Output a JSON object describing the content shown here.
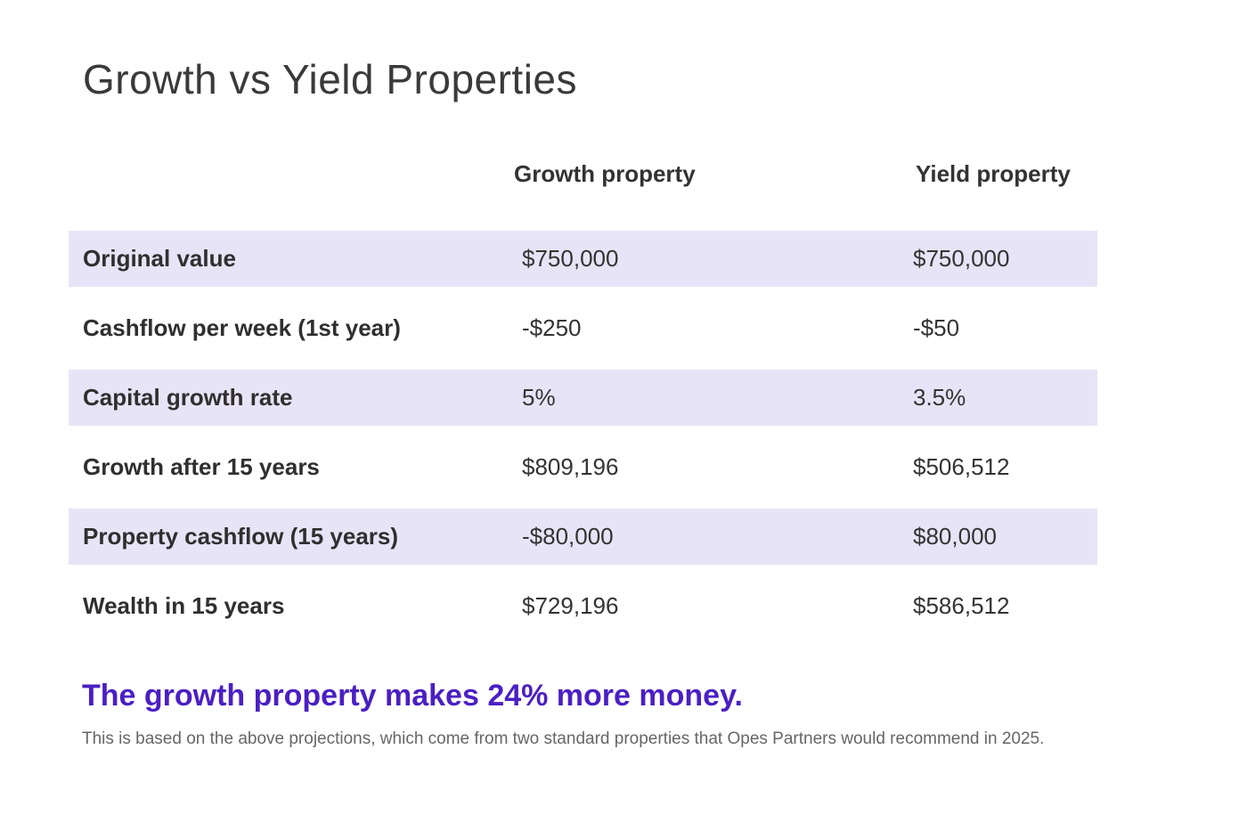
{
  "title": "Growth vs Yield Properties",
  "columns": [
    "Growth property",
    "Yield property"
  ],
  "rows": [
    {
      "label": "Original value",
      "growth": "$750,000",
      "yield": "$750,000",
      "shaded": true
    },
    {
      "label": "Cashflow per week (1st year)",
      "growth": "-$250",
      "yield": "-$50",
      "shaded": false
    },
    {
      "label": "Capital growth rate",
      "growth": "5%",
      "yield": "3.5%",
      "shaded": true
    },
    {
      "label": "Growth after 15 years",
      "growth": "$809,196",
      "yield": "$506,512",
      "shaded": false
    },
    {
      "label": "Property cashflow (15 years)",
      "growth": "-$80,000",
      "yield": "$80,000",
      "shaded": true
    },
    {
      "label": "Wealth in 15 years",
      "growth": "$729,196",
      "yield": "$586,512",
      "shaded": false
    }
  ],
  "headline": "The growth property makes 24% more money.",
  "note": "This is based on the above projections, which come from two standard properties that Opes Partners would recommend in 2025.",
  "colors": {
    "band": "#e8e4f7",
    "accent": "#4a1fc4"
  }
}
